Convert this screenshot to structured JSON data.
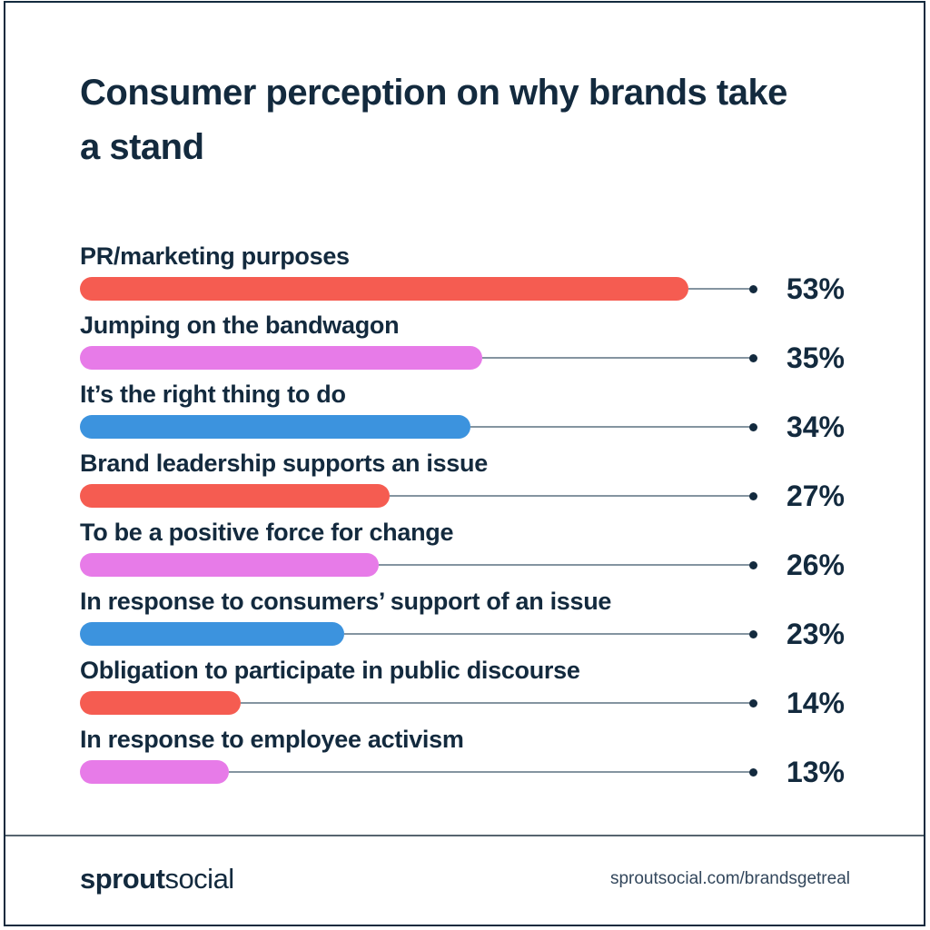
{
  "title": "Consumer perception on why brands take a stand",
  "colors": {
    "navy": "#132A3E",
    "coral": "#F55C51",
    "pink": "#E77BE8",
    "blue": "#3C93DE",
    "connector_gray": "#8494A0",
    "divider_gray": "#57646F"
  },
  "chart_data": {
    "type": "bar",
    "orientation": "horizontal",
    "title": "Consumer perception on why brands take a stand",
    "categories": [
      "PR/marketing purposes",
      "Jumping on the bandwagon",
      "It’s the right thing to do",
      "Brand leadership supports an issue",
      "To be a positive force for change",
      "In response to consumers’ support of an issue",
      "Obligation to participate in public discourse",
      "In response to employee activism"
    ],
    "values": [
      53,
      35,
      34,
      27,
      26,
      23,
      14,
      13
    ],
    "unit": "%",
    "xlim": [
      0,
      59
    ],
    "grid": false,
    "legend": false,
    "bar_colors": [
      "#F55C51",
      "#E77BE8",
      "#3C93DE",
      "#F55C51",
      "#E77BE8",
      "#3C93DE",
      "#F55C51",
      "#E77BE8"
    ]
  },
  "footer": {
    "logo_bold": "sprout",
    "logo_light": "social",
    "url": "sproutsocial.com/brandsgetreal"
  }
}
